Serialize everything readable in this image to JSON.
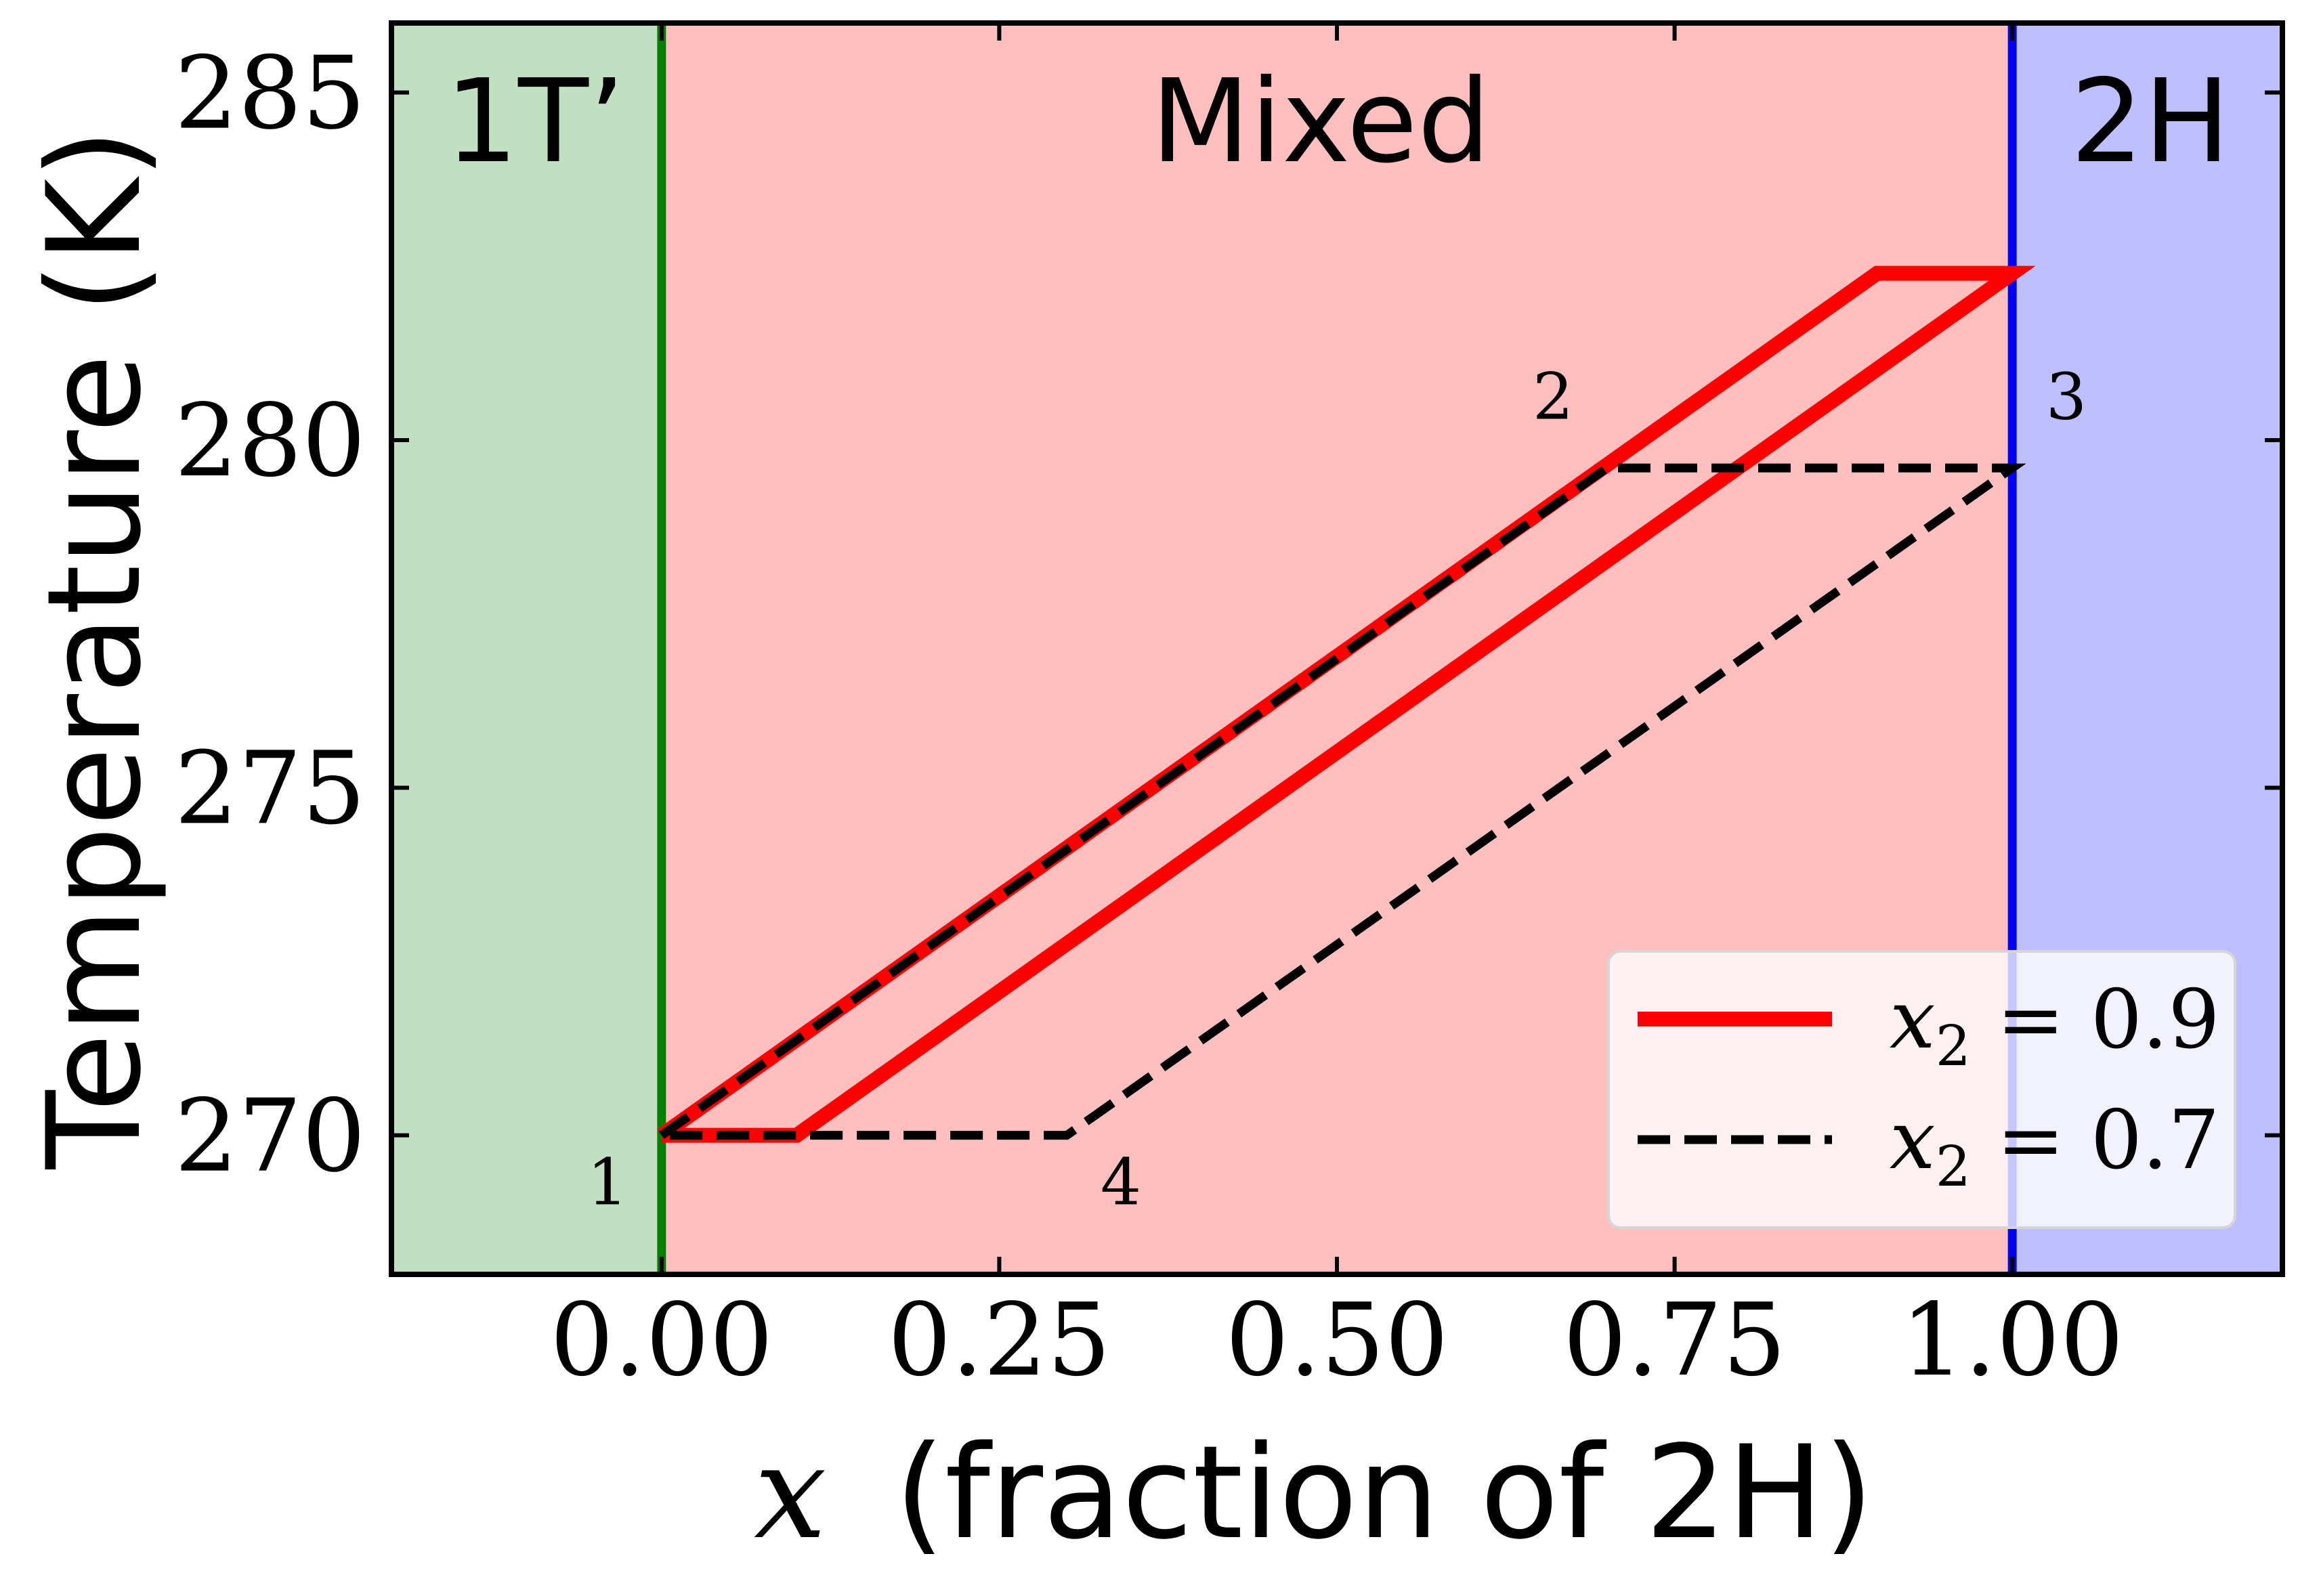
{
  "chart_data": {
    "type": "line",
    "xlabel_var": "x",
    "xlabel_rest": "(fraction of 2H)",
    "ylabel": "Temperature (K)",
    "xlim": [
      -0.2,
      1.2
    ],
    "ylim": [
      268,
      286
    ],
    "x_ticks": [
      0.0,
      0.25,
      0.5,
      0.75,
      1.0
    ],
    "x_tick_labels": [
      "0.00",
      "0.25",
      "0.50",
      "0.75",
      "1.00"
    ],
    "y_ticks": [
      270,
      275,
      280,
      285
    ],
    "y_tick_labels": [
      "270",
      "275",
      "280",
      "285"
    ],
    "grid": false,
    "regions": [
      {
        "label": "1T’",
        "x_from": -0.2,
        "x_to": 0.0,
        "color": "#c1e0c1"
      },
      {
        "label": "Mixed",
        "x_from": 0.0,
        "x_to": 1.0,
        "color": "#ffbfbf"
      },
      {
        "label": "2H",
        "x_from": 1.0,
        "x_to": 1.2,
        "color": "#bfbfff"
      }
    ],
    "boundaries": [
      {
        "x": 0.0,
        "color": "#007f00"
      },
      {
        "x": 1.0,
        "color": "#0000ff"
      }
    ],
    "series": [
      {
        "name_var": "x",
        "name_sub": "2",
        "name_rest": " = 0.9",
        "color": "#ff0000",
        "style": "solid",
        "x": [
          0.0,
          0.9,
          1.0,
          0.1,
          0.0
        ],
        "y": [
          270.0,
          282.4,
          282.4,
          270.0,
          270.0
        ]
      },
      {
        "name_var": "x",
        "name_sub": "2",
        "name_rest": " = 0.7",
        "color": "#000000",
        "style": "dashed",
        "x": [
          0.0,
          0.7,
          1.0,
          0.3,
          0.0
        ],
        "y": [
          270.0,
          279.6,
          279.6,
          270.0,
          270.0
        ]
      }
    ],
    "point_labels": [
      {
        "text": "1",
        "x": -0.04,
        "y": 269.3
      },
      {
        "text": "2",
        "x": 0.66,
        "y": 280.6
      },
      {
        "text": "3",
        "x": 1.04,
        "y": 280.6
      },
      {
        "text": "4",
        "x": 0.34,
        "y": 269.3
      }
    ],
    "legend_position": "lower right"
  }
}
